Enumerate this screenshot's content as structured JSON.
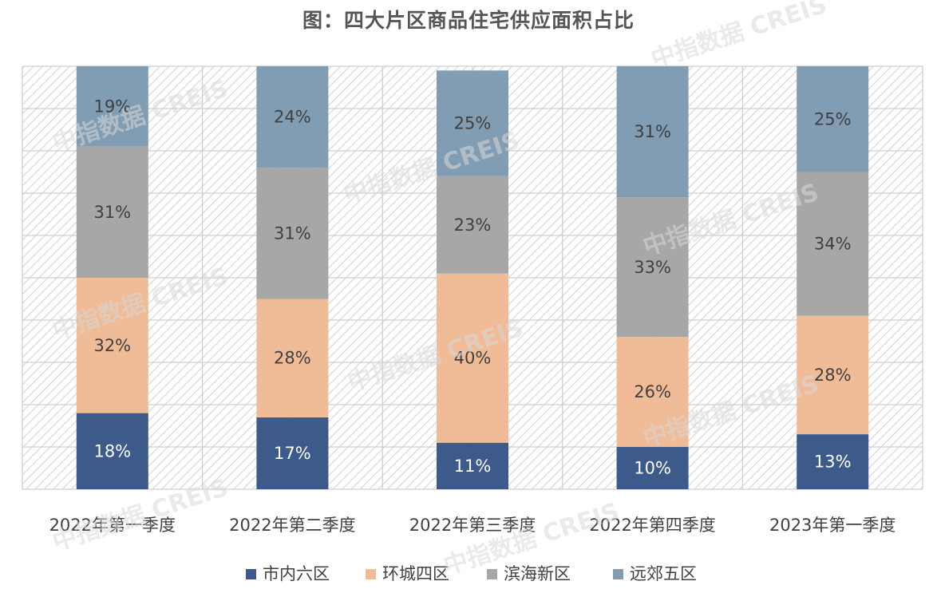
{
  "chart_data": {
    "type": "bar",
    "stacked": true,
    "percent_stacked": true,
    "title": "图：四大片区商品住宅供应面积占比",
    "categories": [
      "2022年第一季度",
      "2022年第二季度",
      "2022年第三季度",
      "2022年第四季度",
      "2023年第一季度"
    ],
    "series": [
      {
        "name": "市内六区",
        "values": [
          18,
          17,
          11,
          10,
          13
        ],
        "color": "#3c5a8a",
        "label_color": "#ffffff"
      },
      {
        "name": "环城四区",
        "values": [
          32,
          28,
          40,
          26,
          28
        ],
        "color": "#f0bc98",
        "label_color": "#404040"
      },
      {
        "name": "滨海新区",
        "values": [
          31,
          31,
          23,
          33,
          34
        ],
        "color": "#a7a7a7",
        "label_color": "#404040"
      },
      {
        "name": "远郊五区",
        "values": [
          19,
          24,
          25,
          31,
          25
        ],
        "color": "#819db3",
        "label_color": "#404040"
      }
    ],
    "value_suffix": "%",
    "ylim": [
      0,
      100
    ],
    "grid": true,
    "legend_position": "bottom",
    "watermark": "中指数据 CREIS"
  }
}
